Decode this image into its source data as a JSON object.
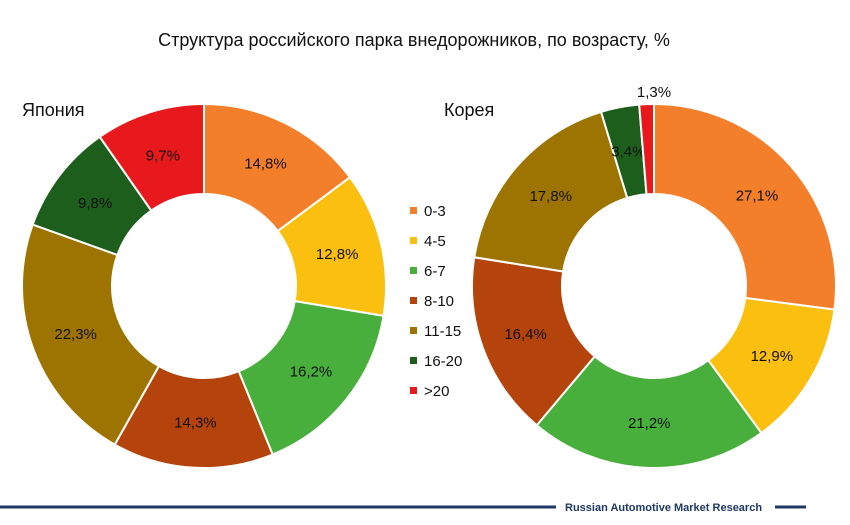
{
  "title": "Структура российского парка внедорожников, по возрасту, %",
  "footer": "Russian Automotive Market Research",
  "chart_data": [
    {
      "type": "pie",
      "subtitle": "Япония",
      "categories": [
        "0-3",
        "4-5",
        "6-7",
        "8-10",
        "11-15",
        "16-20",
        ">20"
      ],
      "values": [
        14.8,
        12.8,
        16.2,
        14.3,
        22.3,
        9.8,
        9.7
      ],
      "labels": [
        "14,8%",
        "12,8%",
        "16,2%",
        "14,3%",
        "22,3%",
        "9,8%",
        "9,7%"
      ]
    },
    {
      "type": "pie",
      "subtitle": "Корея",
      "categories": [
        "0-3",
        "4-5",
        "6-7",
        "8-10",
        "11-15",
        "16-20",
        ">20"
      ],
      "values": [
        27.1,
        12.9,
        21.2,
        16.4,
        17.8,
        3.4,
        1.3
      ],
      "labels": [
        "27,1%",
        "12,9%",
        "21,2%",
        "16,4%",
        "17,8%",
        "3,4%",
        "1,3%"
      ]
    }
  ],
  "legend": {
    "items": [
      {
        "label": "0-3",
        "color": "#f47f2a"
      },
      {
        "label": "4-5",
        "color": "#fbbf10"
      },
      {
        "label": "6-7",
        "color": "#48ae3c"
      },
      {
        "label": "8-10",
        "color": "#b5440c"
      },
      {
        "label": "11-15",
        "color": "#9e7400"
      },
      {
        "label": "16-20",
        "color": "#1d5e1d"
      },
      {
        "label": ">20",
        "color": "#e8191c"
      }
    ]
  },
  "colors": {
    "footer_line": "#1f3864"
  }
}
